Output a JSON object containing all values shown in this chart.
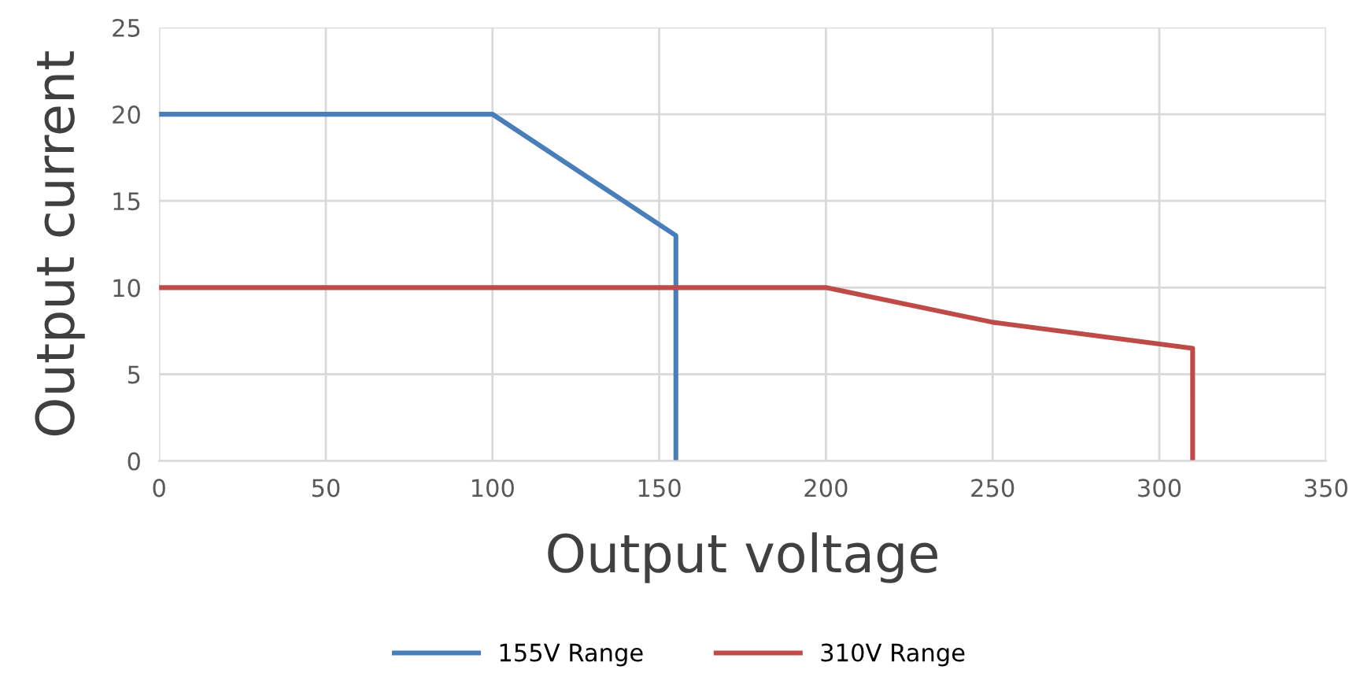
{
  "chart_data": {
    "type": "line",
    "xlabel": "Output voltage",
    "ylabel": "Output current",
    "xlim": [
      0,
      350
    ],
    "xticks": [
      0,
      50,
      100,
      150,
      200,
      250,
      300,
      350
    ],
    "ylim": [
      0,
      25
    ],
    "yticks": [
      0,
      5,
      10,
      15,
      20,
      25
    ],
    "grid": true,
    "legend": "bottom",
    "marker": "none",
    "line_style": "solid",
    "series": [
      {
        "name": "155V Range",
        "color": "#4a7ebb",
        "x": [
          0,
          100,
          155,
          155
        ],
        "values": [
          20,
          20,
          13,
          0
        ]
      },
      {
        "name": "310V Range",
        "color": "#be4b48",
        "x": [
          0,
          200,
          250,
          310,
          310
        ],
        "values": [
          10,
          10,
          8,
          6.5,
          0
        ]
      }
    ]
  }
}
